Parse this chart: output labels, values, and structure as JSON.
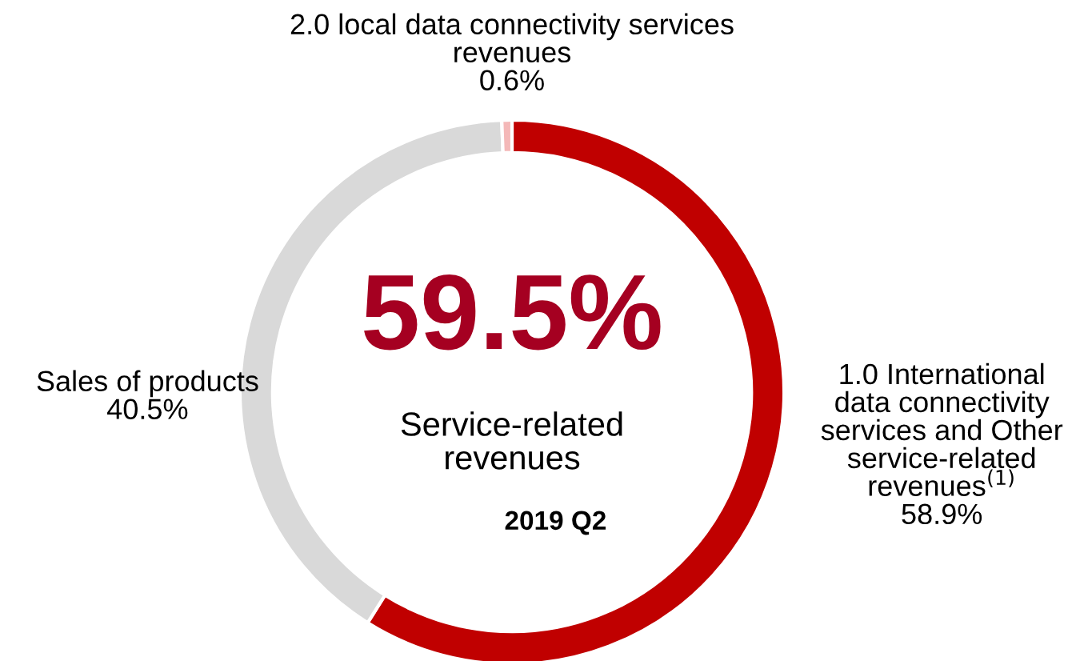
{
  "chart_data": {
    "type": "donut",
    "categories": [
      "1.0 International\ndata connectivity\nservices and Other\nservice-related\nrevenues$^{(1)}$",
      "Sales of products",
      "2.0 local data connectivity services\nrevenues"
    ],
    "values": [
      58.9,
      40.5,
      0.6
    ],
    "colors": [
      "#c00000",
      "#d9d9d9",
      "#f4b8b8"
    ],
    "value_labels": [
      "58.9%",
      "40.5%",
      "0.6%"
    ],
    "annotations": [
      "59.5%",
      "Service-related\nrevenues",
      "2019 Q2"
    ],
    "legend": false
  }
}
